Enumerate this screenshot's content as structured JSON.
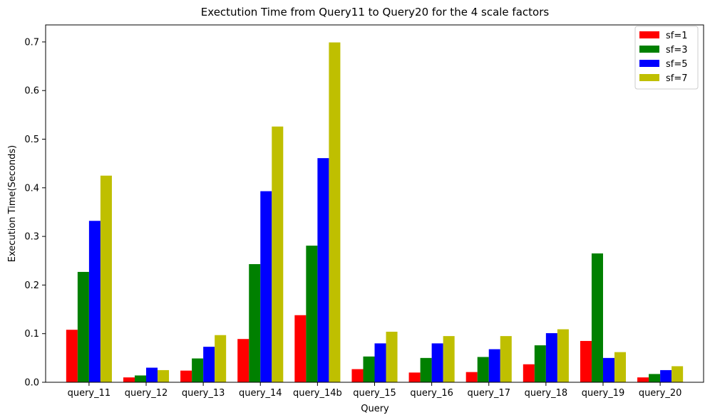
{
  "chart_data": {
    "type": "bar",
    "title": "Exectution Time from Query11 to Query20 for the 4 scale factors",
    "xlabel": "Query",
    "ylabel": "Execution Time(Seconds)",
    "ylim": [
      0,
      0.735
    ],
    "yticks": [
      "0.0",
      "0.1",
      "0.2",
      "0.3",
      "0.4",
      "0.5",
      "0.6",
      "0.7"
    ],
    "ytick_values": [
      0,
      0.1,
      0.2,
      0.3,
      0.4,
      0.5,
      0.6,
      0.7
    ],
    "legend_position": "top-right",
    "grid": false,
    "categories": [
      "query_11",
      "query_12",
      "query_13",
      "query_14",
      "query_14b",
      "query_15",
      "query_16",
      "query_17",
      "query_18",
      "query_19",
      "query_20"
    ],
    "series": [
      {
        "name": "sf=1",
        "color": "#ff0000",
        "values": [
          0.108,
          0.01,
          0.024,
          0.089,
          0.138,
          0.027,
          0.02,
          0.021,
          0.037,
          0.085,
          0.01
        ]
      },
      {
        "name": "sf=3",
        "color": "#008000",
        "values": [
          0.227,
          0.014,
          0.049,
          0.243,
          0.281,
          0.053,
          0.05,
          0.052,
          0.076,
          0.265,
          0.017
        ]
      },
      {
        "name": "sf=5",
        "color": "#0000ff",
        "values": [
          0.332,
          0.03,
          0.073,
          0.393,
          0.461,
          0.08,
          0.08,
          0.068,
          0.101,
          0.05,
          0.025
        ]
      },
      {
        "name": "sf=7",
        "color": "#bfbf00",
        "values": [
          0.425,
          0.025,
          0.097,
          0.526,
          0.699,
          0.104,
          0.095,
          0.095,
          0.109,
          0.062,
          0.033
        ]
      }
    ]
  }
}
